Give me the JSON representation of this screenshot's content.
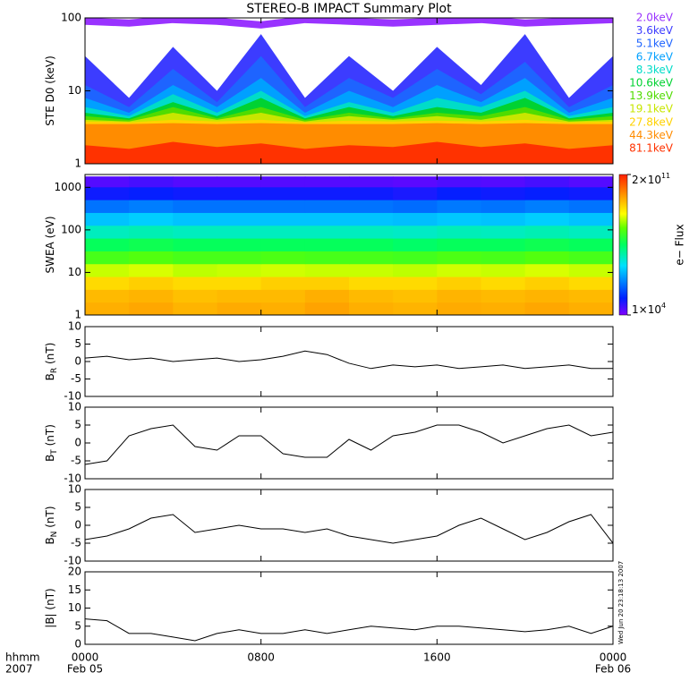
{
  "title": "STEREO-B IMPACT Summary Plot",
  "timestamp": "Wed Jun 20 23:18:13 2007",
  "chart_data": [
    {
      "type": "area",
      "ylabel": "STE D0 (keV)",
      "log_y": true,
      "ylim": [
        1,
        100
      ],
      "yticks": [
        1,
        10,
        100
      ],
      "xlim": [
        0,
        24
      ],
      "x": [
        0,
        2,
        4,
        6,
        8,
        10,
        12,
        14,
        16,
        18,
        20,
        22,
        24
      ],
      "series": [
        {
          "name": "2.0keV",
          "color": "#9933ff",
          "values": [
            90,
            85,
            95,
            90,
            80,
            95,
            90,
            85,
            90,
            95,
            85,
            90,
            95
          ]
        },
        {
          "name": "3.6keV",
          "color": "#3c3cff",
          "values": [
            30,
            8,
            40,
            10,
            60,
            8,
            30,
            10,
            40,
            12,
            60,
            8,
            30
          ]
        },
        {
          "name": "5.1keV",
          "color": "#1e64ff",
          "values": [
            12,
            6,
            20,
            7,
            30,
            6,
            15,
            8,
            20,
            9,
            25,
            6,
            12
          ]
        },
        {
          "name": "6.7keV",
          "color": "#00a0ff",
          "values": [
            8,
            5,
            12,
            6,
            15,
            5,
            10,
            6,
            12,
            7,
            15,
            5,
            8
          ]
        },
        {
          "name": "8.3keV",
          "color": "#00dcc8",
          "values": [
            6,
            4.5,
            9,
            5,
            10,
            4.5,
            7,
            5,
            8,
            6,
            10,
            4.5,
            6
          ]
        },
        {
          "name": "10.6keV",
          "color": "#00d232",
          "values": [
            5,
            4.2,
            7,
            4.5,
            8,
            4.2,
            6,
            4.5,
            6,
            5,
            8,
            4.2,
            5
          ]
        },
        {
          "name": "13.9keV",
          "color": "#50dc00",
          "values": [
            4.5,
            4,
            6,
            4.2,
            6,
            4,
            5,
            4.2,
            5,
            4.5,
            6,
            4,
            4.5
          ]
        },
        {
          "name": "19.1keV",
          "color": "#c8e600",
          "values": [
            4,
            3.8,
            5,
            4,
            5,
            3.8,
            4.5,
            4,
            4.5,
            4,
            5,
            3.8,
            4
          ]
        },
        {
          "name": "27.8keV",
          "color": "#ffd200",
          "values": [
            3.8,
            3.7,
            4,
            3.8,
            4,
            3.7,
            3.9,
            3.8,
            3.9,
            3.8,
            4,
            3.7,
            3.8
          ]
        },
        {
          "name": "44.3keV",
          "color": "#ff8c00",
          "values": [
            3.5,
            3.5,
            3.6,
            3.5,
            3.6,
            3.5,
            3.5,
            3.5,
            3.6,
            3.5,
            3.6,
            3.5,
            3.5
          ]
        },
        {
          "name": "81.1keV",
          "color": "#ff3200",
          "values": [
            1.8,
            1.6,
            2,
            1.7,
            1.9,
            1.6,
            1.8,
            1.7,
            2,
            1.7,
            1.9,
            1.6,
            1.8
          ]
        }
      ]
    },
    {
      "type": "heatmap",
      "ylabel": "SWEA (eV)",
      "log_y": true,
      "ylim": [
        1,
        2000
      ],
      "yticks": [
        1,
        10,
        100,
        1000
      ],
      "xlim": [
        0,
        24
      ],
      "xbins": [
        0,
        2,
        4,
        6,
        8,
        10,
        12,
        14,
        16,
        18,
        20,
        22,
        24
      ],
      "ybins": [
        1,
        2,
        4,
        8,
        16,
        32,
        64,
        128,
        256,
        512,
        1024,
        1800
      ],
      "zlabel": "e− Flux",
      "zlim": [
        10000.0,
        200000000000.0
      ],
      "zticks": [
        {
          "value": 200000000000.0,
          "label": "2×10",
          "sup": "11"
        },
        {
          "value": 10000.0,
          "label": "1×10",
          "sup": "4"
        }
      ],
      "values": [
        [
          10000000000.0,
          12000000000.0,
          9000000000.0,
          11000000000.0,
          10000000000.0,
          13000000000.0,
          10000000000.0,
          9000000000.0,
          11000000000.0,
          10000000000.0,
          12000000000.0,
          10000000000.0
        ],
        [
          8000000000.0,
          9000000000.0,
          7000000000.0,
          8000000000.0,
          8000000000.0,
          10000000000.0,
          8000000000.0,
          7000000000.0,
          9000000000.0,
          8000000000.0,
          9000000000.0,
          8000000000.0
        ],
        [
          4000000000.0,
          5000000000.0,
          4000000000.0,
          4000000000.0,
          5000000000.0,
          5000000000.0,
          4000000000.0,
          4000000000.0,
          5000000000.0,
          4000000000.0,
          5000000000.0,
          4000000000.0
        ],
        [
          1000000000.0,
          1200000000.0,
          900000000.0,
          1000000000.0,
          1100000000.0,
          1000000000.0,
          1000000000.0,
          900000000.0,
          1100000000.0,
          1000000000.0,
          1200000000.0,
          1000000000.0
        ],
        [
          200000000.0,
          250000000.0,
          200000000.0,
          200000000.0,
          220000000.0,
          200000000.0,
          200000000.0,
          180000000.0,
          220000000.0,
          200000000.0,
          250000000.0,
          200000000.0
        ],
        [
          50000000.0,
          60000000.0,
          50000000.0,
          50000000.0,
          50000000.0,
          50000000.0,
          50000000.0,
          40000000.0,
          50000000.0,
          50000000.0,
          60000000.0,
          50000000.0
        ],
        [
          10000000.0,
          12000000.0,
          10000000.0,
          10000000.0,
          10000000.0,
          10000000.0,
          10000000.0,
          9000000.0,
          11000000.0,
          10000000.0,
          12000000.0,
          10000000.0
        ],
        [
          2000000.0,
          2500000.0,
          2000000.0,
          2000000.0,
          2000000.0,
          2000000.0,
          2000000.0,
          1800000.0,
          2200000.0,
          2000000.0,
          2500000.0,
          2000000.0
        ],
        [
          400000.0,
          500000.0,
          400000.0,
          400000.0,
          400000.0,
          400000.0,
          400000.0,
          350000.0,
          450000.0,
          400000.0,
          500000.0,
          400000.0
        ],
        [
          60000.0,
          70000.0,
          60000.0,
          60000.0,
          60000.0,
          60000.0,
          60000.0,
          50000.0,
          70000.0,
          60000.0,
          70000.0,
          60000.0
        ],
        [
          20000.0,
          25000.0,
          20000.0,
          20000.0,
          20000.0,
          20000.0,
          20000.0,
          18000.0,
          22000.0,
          20000.0,
          25000.0,
          20000.0
        ]
      ]
    },
    {
      "type": "line",
      "ylabel": "B",
      "ylabel_sub": "R",
      "ylabel_unit": " (nT)",
      "ylim": [
        -10,
        10
      ],
      "yticks": [
        -10,
        -5,
        0,
        5,
        10
      ],
      "xlim": [
        0,
        24
      ],
      "x": [
        0,
        1,
        2,
        3,
        4,
        5,
        6,
        7,
        8,
        9,
        10,
        11,
        12,
        13,
        14,
        15,
        16,
        17,
        18,
        19,
        20,
        21,
        22,
        23,
        24
      ],
      "series": [
        {
          "color": "#000000",
          "values": [
            1,
            1.5,
            0.5,
            1,
            0,
            0.5,
            1,
            0,
            0.5,
            1.5,
            3,
            2,
            -0.5,
            -2,
            -1,
            -1.5,
            -1,
            -2,
            -1.5,
            -1,
            -2,
            -1.5,
            -1,
            -2,
            -2
          ]
        }
      ]
    },
    {
      "type": "line",
      "ylabel": "B",
      "ylabel_sub": "T",
      "ylabel_unit": " (nT)",
      "ylim": [
        -10,
        10
      ],
      "yticks": [
        -10,
        -5,
        0,
        5,
        10
      ],
      "xlim": [
        0,
        24
      ],
      "x": [
        0,
        1,
        2,
        3,
        4,
        5,
        6,
        7,
        8,
        9,
        10,
        11,
        12,
        13,
        14,
        15,
        16,
        17,
        18,
        19,
        20,
        21,
        22,
        23,
        24
      ],
      "series": [
        {
          "color": "#000000",
          "values": [
            -6,
            -5,
            2,
            4,
            5,
            -1,
            -2,
            2,
            2,
            -3,
            -4,
            -4,
            1,
            -2,
            2,
            3,
            5,
            5,
            3,
            0,
            2,
            4,
            5,
            2,
            3
          ]
        }
      ]
    },
    {
      "type": "line",
      "ylabel": "B",
      "ylabel_sub": "N",
      "ylabel_unit": " (nT)",
      "ylim": [
        -10,
        10
      ],
      "yticks": [
        -10,
        -5,
        0,
        5,
        10
      ],
      "xlim": [
        0,
        24
      ],
      "x": [
        0,
        1,
        2,
        3,
        4,
        5,
        6,
        7,
        8,
        9,
        10,
        11,
        12,
        13,
        14,
        15,
        16,
        17,
        18,
        19,
        20,
        21,
        22,
        23,
        24
      ],
      "series": [
        {
          "color": "#000000",
          "values": [
            -4,
            -3,
            -1,
            2,
            3,
            -2,
            -1,
            0,
            -1,
            -1,
            -2,
            -1,
            -3,
            -4,
            -5,
            -4,
            -3,
            0,
            2,
            -1,
            -4,
            -2,
            1,
            3,
            -5
          ]
        }
      ]
    },
    {
      "type": "line",
      "ylabel": "|B| (nT)",
      "ylim": [
        0,
        20
      ],
      "yticks": [
        0,
        5,
        10,
        15,
        20
      ],
      "xlim": [
        0,
        24
      ],
      "x": [
        0,
        1,
        2,
        3,
        4,
        5,
        6,
        7,
        8,
        9,
        10,
        11,
        12,
        13,
        14,
        15,
        16,
        17,
        18,
        19,
        20,
        21,
        22,
        23,
        24
      ],
      "series": [
        {
          "color": "#000000",
          "values": [
            7,
            6.5,
            3,
            3,
            2,
            1,
            3,
            4,
            3,
            3,
            4,
            3,
            4,
            5,
            4.5,
            4,
            5,
            5,
            4.5,
            4,
            3.5,
            4,
            5,
            3,
            5
          ]
        }
      ],
      "xticks": [
        {
          "value": 0,
          "label": "0000"
        },
        {
          "value": 8,
          "label": "0800"
        },
        {
          "value": 16,
          "label": "1600"
        },
        {
          "value": 24,
          "label": "0000"
        }
      ],
      "x_dates": [
        {
          "value": 0,
          "label": "Feb 05"
        },
        {
          "value": 24,
          "label": "Feb 06"
        }
      ],
      "x_unit": "hhmm",
      "x_year": "2007"
    }
  ]
}
